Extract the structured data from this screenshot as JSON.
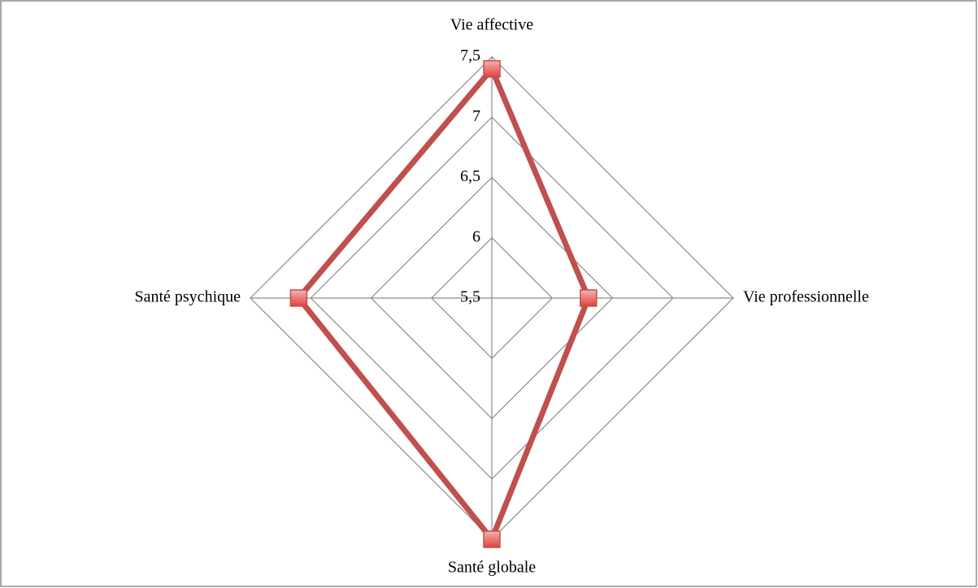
{
  "chart_data": {
    "type": "radar",
    "categories": [
      "Vie affective",
      "Vie professionnelle",
      "Santé globale",
      "Santé psychique"
    ],
    "series": [
      {
        "name": null,
        "color": "#c0504d",
        "values": [
          7.4,
          6.3,
          7.5,
          7.1
        ]
      }
    ],
    "ylim": [
      5.5,
      7.5
    ],
    "yticks": [
      {
        "value": 5.5,
        "label": "5,5"
      },
      6,
      {
        "value": 6.5,
        "label": "6,5"
      },
      7,
      {
        "value": 7.5,
        "label": "7,5"
      }
    ],
    "grid": true
  }
}
